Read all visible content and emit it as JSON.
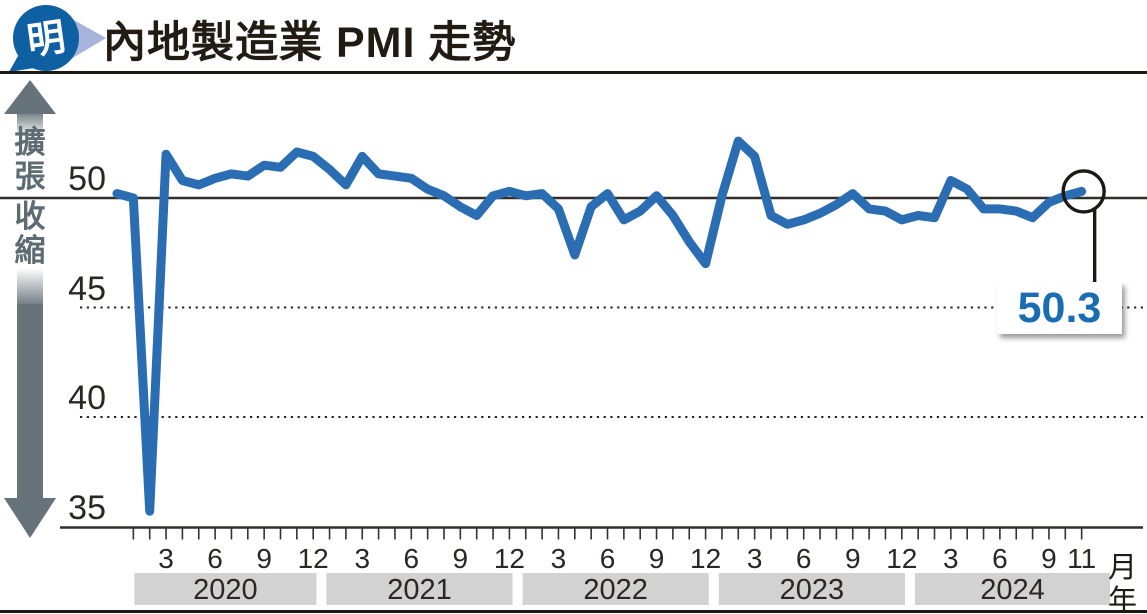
{
  "header": {
    "brand_glyph": "明",
    "title": "內地製造業 PMI 走勢"
  },
  "colors": {
    "line_blue": "#2a6db3",
    "callout_blue": "#1b6db3",
    "ink": "#211b14",
    "grid_ink": "#322e28",
    "arrow_gray": "#66737a",
    "side_label_gray": "#5d6b72",
    "year_band_gray": "#d2d2d2",
    "logo_dark_blue": "#0f5fa3",
    "logo_light_blue": "#a6b3da"
  },
  "chart_data": {
    "type": "line",
    "title": "內地製造業 PMI 走勢",
    "xlabel": "月 / 年",
    "ylabel": "PMI",
    "ylim": [
      35,
      53.5
    ],
    "y_ticks": [
      35,
      40,
      45,
      50
    ],
    "reference_line": 50,
    "grid": "solid line at 50; dotted lines at 40 and 45; x axis at 35",
    "legend_position": "none",
    "expansion_label": "擴張",
    "contraction_label": "收縮",
    "x_unit": "月",
    "year_unit": "年",
    "labeled_months": [
      3,
      6,
      9,
      12
    ],
    "extra_labeled_x": [
      "2024-11"
    ],
    "years": [
      2020,
      2021,
      2022,
      2023,
      2024
    ],
    "annotation": {
      "x": "2024-11",
      "label": "50.3"
    },
    "series": [
      {
        "name": "製造業PMI",
        "x": [
          "2019-12",
          "2020-01",
          "2020-02",
          "2020-03",
          "2020-04",
          "2020-05",
          "2020-06",
          "2020-07",
          "2020-08",
          "2020-09",
          "2020-10",
          "2020-11",
          "2020-12",
          "2021-01",
          "2021-02",
          "2021-03",
          "2021-04",
          "2021-05",
          "2021-06",
          "2021-07",
          "2021-08",
          "2021-09",
          "2021-10",
          "2021-11",
          "2021-12",
          "2022-01",
          "2022-02",
          "2022-03",
          "2022-04",
          "2022-05",
          "2022-06",
          "2022-07",
          "2022-08",
          "2022-09",
          "2022-10",
          "2022-11",
          "2022-12",
          "2023-01",
          "2023-02",
          "2023-03",
          "2023-04",
          "2023-05",
          "2023-06",
          "2023-07",
          "2023-08",
          "2023-09",
          "2023-10",
          "2023-11",
          "2023-12",
          "2024-01",
          "2024-02",
          "2024-03",
          "2024-04",
          "2024-05",
          "2024-06",
          "2024-07",
          "2024-08",
          "2024-09",
          "2024-10",
          "2024-11"
        ],
        "values": [
          50.2,
          50.0,
          35.7,
          52.0,
          50.8,
          50.6,
          50.9,
          51.1,
          51.0,
          51.5,
          51.4,
          52.1,
          51.9,
          51.3,
          50.6,
          51.9,
          51.1,
          51.0,
          50.9,
          50.4,
          50.1,
          49.6,
          49.2,
          50.1,
          50.3,
          50.1,
          50.2,
          49.5,
          47.4,
          49.6,
          50.2,
          49.0,
          49.4,
          50.1,
          49.2,
          48.0,
          47.0,
          50.1,
          52.6,
          51.9,
          49.2,
          48.8,
          49.0,
          49.3,
          49.7,
          50.2,
          49.5,
          49.4,
          49.0,
          49.2,
          49.1,
          50.8,
          50.4,
          49.5,
          49.5,
          49.4,
          49.1,
          49.8,
          50.1,
          50.3
        ]
      }
    ]
  }
}
